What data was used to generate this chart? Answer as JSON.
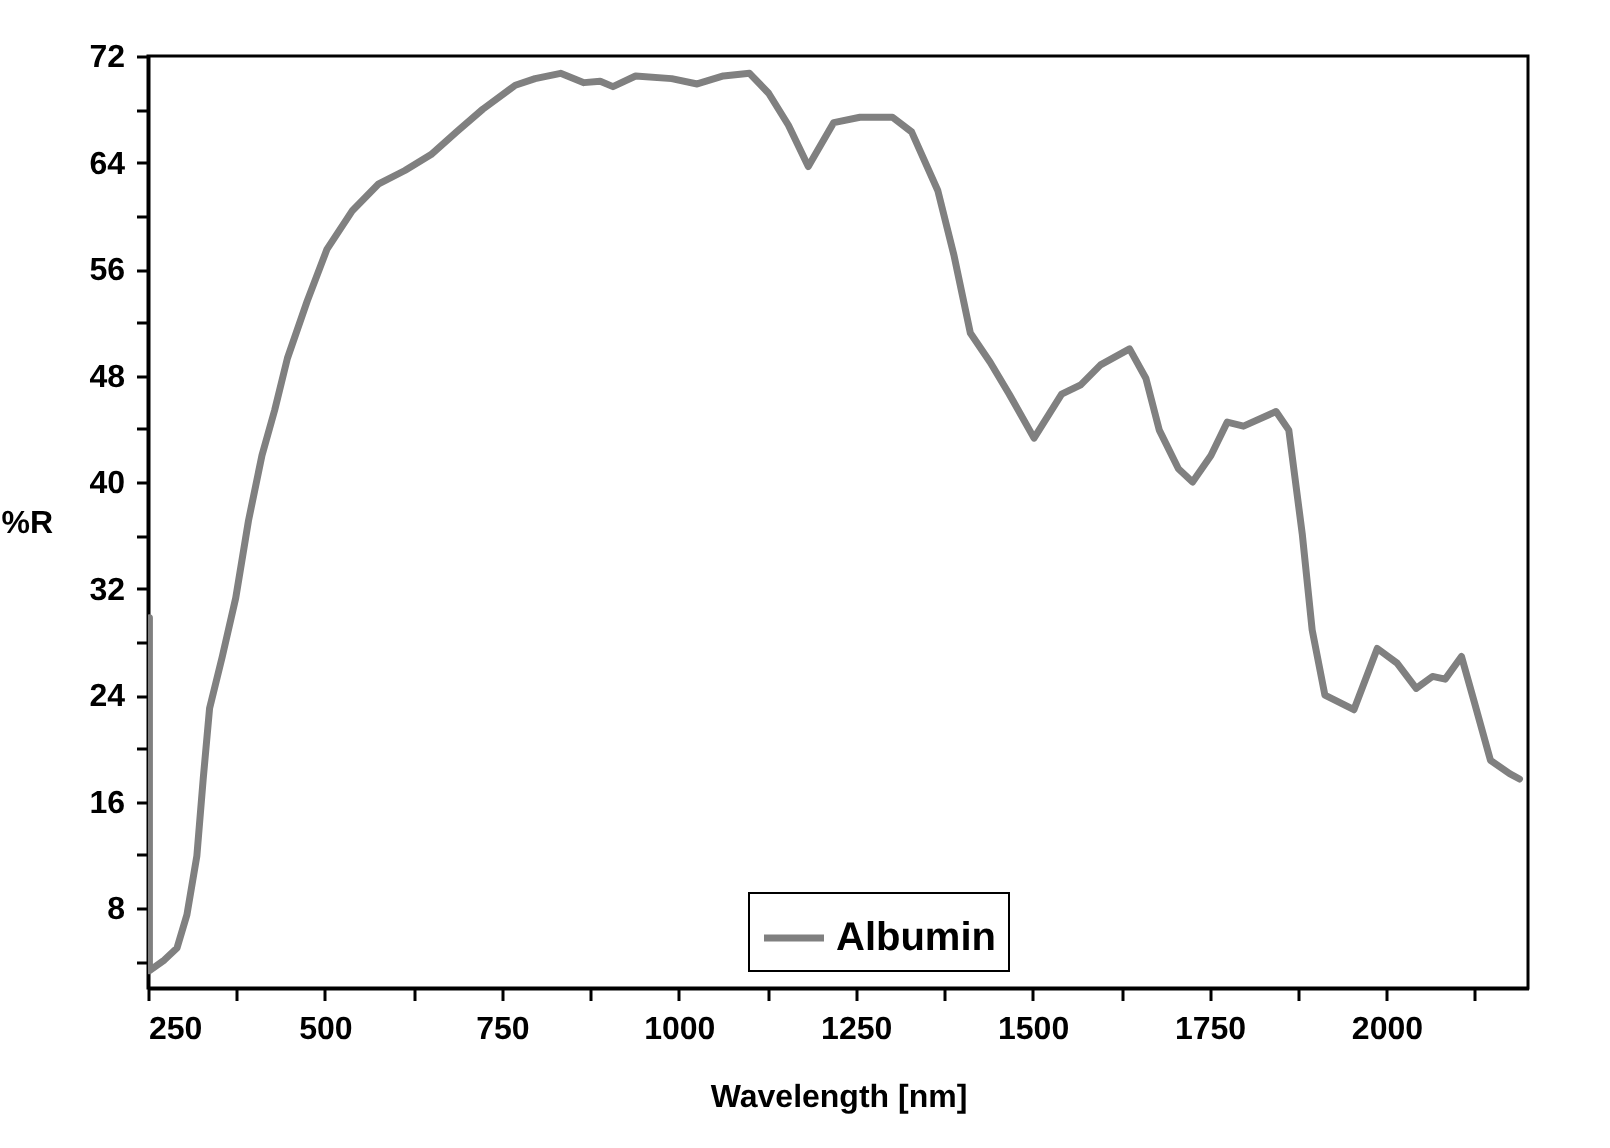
{
  "chart_data": {
    "type": "line",
    "xlabel": "Wavelength [nm]",
    "ylabel": "%R",
    "xlim": [
      250,
      2200
    ],
    "ylim": [
      2,
      72
    ],
    "xticks": [
      250,
      {
        "value": 375,
        "label": null
      },
      500,
      {
        "value": 625,
        "label": null
      },
      750,
      {
        "value": 875,
        "label": null
      },
      1000,
      {
        "value": 1125,
        "label": null
      },
      1250,
      {
        "value": 1375,
        "label": null
      },
      1500,
      {
        "value": 1625,
        "label": null
      },
      1750,
      {
        "value": 1875,
        "label": null
      },
      2000,
      {
        "value": 2125,
        "label": null
      }
    ],
    "yticks": [
      {
        "value": 4,
        "label": null
      },
      8,
      {
        "value": 12,
        "label": null
      },
      16,
      {
        "value": 20,
        "label": null
      },
      24,
      {
        "value": 28,
        "label": null
      },
      32,
      {
        "value": 36,
        "label": null
      },
      40,
      {
        "value": 44,
        "label": null
      },
      48,
      {
        "value": 52,
        "label": null
      },
      56,
      {
        "value": 60,
        "label": null
      },
      64,
      {
        "value": 68,
        "label": null
      },
      72
    ],
    "grid": false,
    "legend": "bottom",
    "line_style": "solid",
    "marker": "none",
    "x": [
      252,
      252,
      273,
      291,
      305,
      319,
      328,
      337,
      355,
      374,
      392,
      411,
      429,
      447,
      475,
      503,
      539,
      576,
      613,
      650,
      686,
      723,
      769,
      797,
      833,
      866,
      889,
      907,
      939,
      990,
      1026,
      1063,
      1100,
      1127,
      1155,
      1183,
      1219,
      1256,
      1302,
      1329,
      1366,
      1389,
      1412,
      1440,
      1467,
      1502,
      1541,
      1568,
      1596,
      1637,
      1660,
      1679,
      1706,
      1726,
      1752,
      1775,
      1798,
      1844,
      1862,
      1881,
      1895,
      1913,
      1954,
      1987,
      2015,
      2042,
      2065,
      2083,
      2106,
      2124,
      2147,
      2174,
      2188
    ],
    "series": [
      {
        "name": "Albumin",
        "color": "#808080",
        "values": [
          29.8,
          3.3,
          4.1,
          5.0,
          7.5,
          11.9,
          17.7,
          23.0,
          26.9,
          31.3,
          37.1,
          42.0,
          45.4,
          49.3,
          53.6,
          57.5,
          60.4,
          62.4,
          63.4,
          64.6,
          66.3,
          68.0,
          69.8,
          70.3,
          70.7,
          70.0,
          70.1,
          69.7,
          70.5,
          70.3,
          69.9,
          70.5,
          70.7,
          69.2,
          66.8,
          63.7,
          67.0,
          67.4,
          67.4,
          66.3,
          61.9,
          57.0,
          51.2,
          49.0,
          46.6,
          43.3,
          46.6,
          47.3,
          48.8,
          50.0,
          47.8,
          43.9,
          41.0,
          40.0,
          42.0,
          44.5,
          44.2,
          45.3,
          43.9,
          36.1,
          28.9,
          24.0,
          22.9,
          27.5,
          26.4,
          24.5,
          25.4,
          25.2,
          26.9,
          23.5,
          19.1,
          18.1,
          17.7
        ]
      }
    ]
  }
}
